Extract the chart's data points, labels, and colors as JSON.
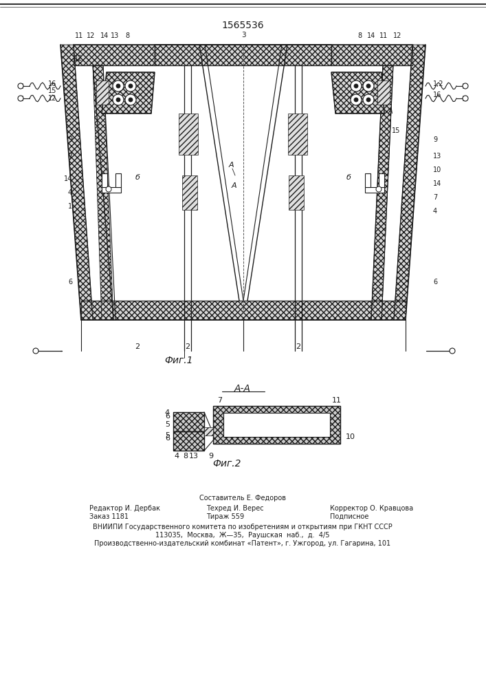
{
  "patent_number": "1565536",
  "fig1_caption": "Фиг.1",
  "fig2_caption": "Фиг.2",
  "section_label": "А-А",
  "footer_line1": "Составитель Е. Федоров",
  "footer_col1_line1": "Редактор И. Дербак",
  "footer_col1_line2": "Заказ 1181",
  "footer_col2_line1": "Техред И. Верес",
  "footer_col2_line2": "Тираж 559",
  "footer_col3_line1": "Корректор О. Кравцова",
  "footer_col3_line2": "Подписное",
  "footer_line2": "ВНИИПИ Государственного комитета по изобретениям и открытиям при ГКНТ СССР",
  "footer_line3": "113035,  Москва,  Ж—35,  Раушская  наб.,  д.  4/5",
  "footer_line4": "Производственно-издательский комбинат «Патент», г. Ужгород, ул. Гагарина, 101",
  "bg_color": "#ffffff",
  "line_color": "#1a1a1a",
  "fig_width": 7.07,
  "fig_height": 10.0
}
